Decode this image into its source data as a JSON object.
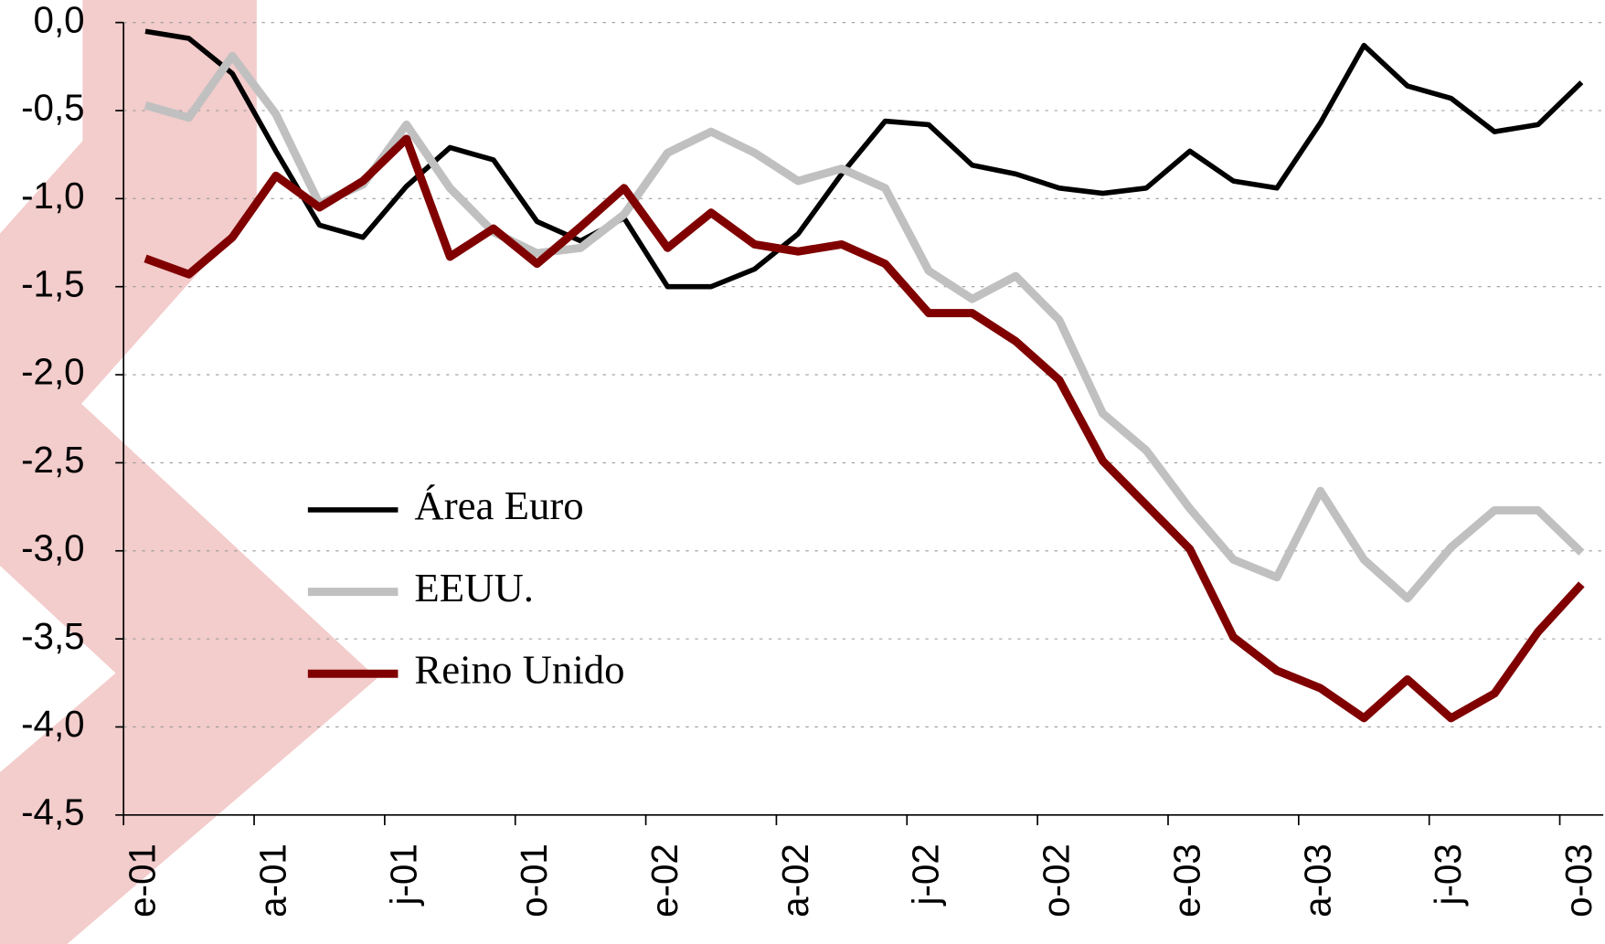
{
  "chart_data": {
    "type": "line",
    "categories": [
      "e-01",
      null,
      null,
      "a-01",
      null,
      null,
      "j-01",
      null,
      null,
      "o-01",
      null,
      null,
      "e-02",
      null,
      null,
      "a-02",
      null,
      null,
      "j-02",
      null,
      null,
      "o-02",
      null,
      null,
      "e-03",
      null,
      null,
      "a-03",
      null,
      null,
      "j-03",
      null,
      null,
      "o-03"
    ],
    "series": [
      {
        "name": "Área Euro",
        "color": "#000000",
        "width": 5,
        "values": [
          -0.05,
          -0.09,
          -0.29,
          -0.73,
          -1.15,
          -1.22,
          -0.93,
          -0.71,
          -0.78,
          -1.13,
          -1.24,
          -1.11,
          -1.5,
          -1.5,
          -1.4,
          -1.2,
          -0.86,
          -0.56,
          -0.58,
          -0.81,
          -0.86,
          -0.94,
          -0.97,
          -0.94,
          -0.73,
          -0.9,
          -0.94,
          -0.57,
          -0.13,
          -0.36,
          -0.43,
          -0.62,
          -0.58,
          -0.34
        ]
      },
      {
        "name": "EEUU.",
        "color": "#c0c0c0",
        "width": 8,
        "values": [
          -0.47,
          -0.54,
          -0.19,
          -0.52,
          -1.03,
          -0.92,
          -0.58,
          -0.94,
          -1.19,
          -1.31,
          -1.28,
          -1.09,
          -0.74,
          -0.62,
          -0.74,
          -0.9,
          -0.83,
          -0.94,
          -1.41,
          -1.57,
          -1.44,
          -1.69,
          -2.22,
          -2.43,
          -2.76,
          -3.05,
          -3.15,
          -2.66,
          -3.05,
          -3.27,
          -2.98,
          -2.77,
          -2.77,
          -3.01
        ]
      },
      {
        "name": "Reino Unido",
        "color": "#800000",
        "width": 8,
        "values": [
          -1.34,
          -1.43,
          -1.22,
          -0.87,
          -1.05,
          -0.9,
          -0.66,
          -1.33,
          -1.17,
          -1.37,
          -1.16,
          -0.94,
          -1.28,
          -1.08,
          -1.26,
          -1.3,
          -1.26,
          -1.37,
          -1.65,
          -1.65,
          -1.81,
          -2.03,
          -2.49,
          -2.74,
          -2.99,
          -3.49,
          -3.68,
          -3.78,
          -3.95,
          -3.73,
          -3.95,
          -3.81,
          -3.46,
          -3.19
        ]
      }
    ],
    "ylim": [
      -4.5,
      0
    ],
    "yticks": [
      {
        "value": 0,
        "label": "0,0"
      },
      {
        "value": -0.5,
        "label": "-0,5"
      },
      {
        "value": -1,
        "label": "-1,0"
      },
      {
        "value": -1.5,
        "label": "-1,5"
      },
      {
        "value": -2,
        "label": "-2,0"
      },
      {
        "value": -2.5,
        "label": "-2,5"
      },
      {
        "value": -3,
        "label": "-3,0"
      },
      {
        "value": -3.5,
        "label": "-3,5"
      },
      {
        "value": -4,
        "label": "-4,0"
      },
      {
        "value": -4.5,
        "label": "-4,5"
      }
    ],
    "grid": true
  }
}
